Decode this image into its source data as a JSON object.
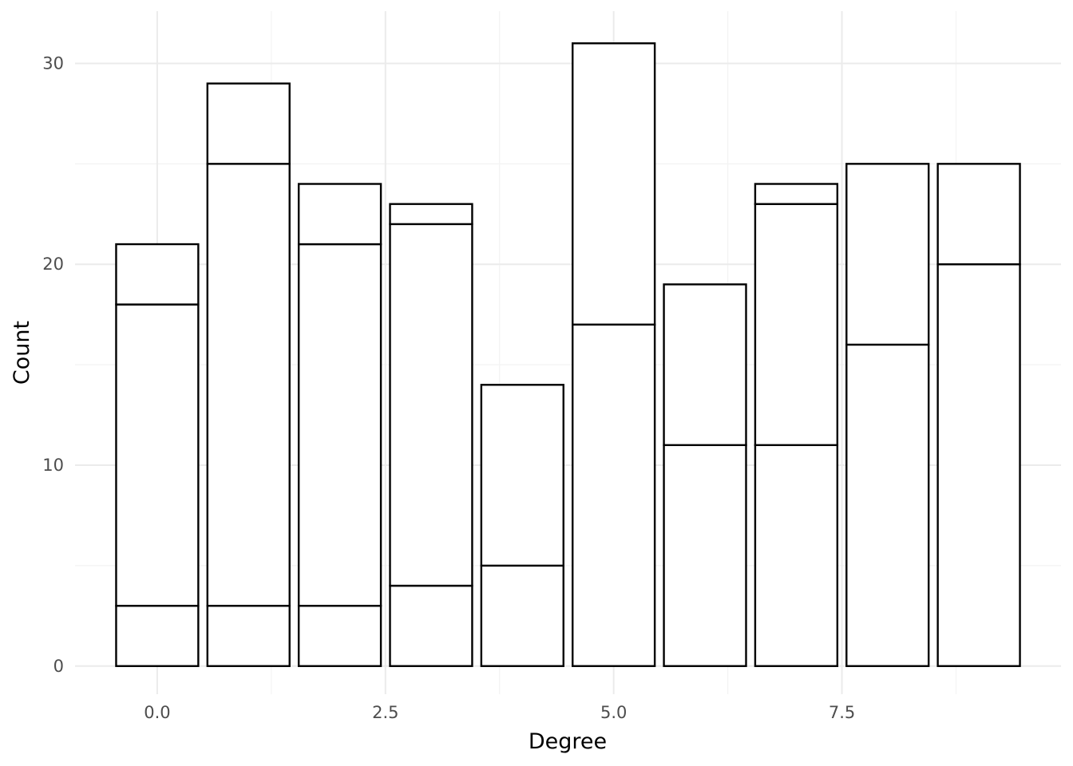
{
  "chart_data": {
    "type": "bar",
    "stacked": true,
    "fill": "#ffffff",
    "stroke": "#000000",
    "background": "#ffffff",
    "grid": true,
    "xlabel": "Degree",
    "ylabel": "Count",
    "xlim": [
      -0.9,
      9.9
    ],
    "ylim": [
      -1.4,
      32.6
    ],
    "x_ticks": [
      0.0,
      2.5,
      5.0,
      7.5
    ],
    "x_tick_labels": [
      "0.0",
      "2.5",
      "5.0",
      "7.5"
    ],
    "y_ticks": [
      0,
      10,
      20,
      30
    ],
    "y_tick_labels": [
      "0",
      "10",
      "20",
      "30"
    ],
    "x": [
      0,
      1,
      2,
      3,
      4,
      5,
      6,
      7,
      8,
      9
    ],
    "segment_boundaries": [
      [
        3,
        18,
        21
      ],
      [
        3,
        25,
        29
      ],
      [
        3,
        21,
        24
      ],
      [
        4,
        22,
        23
      ],
      [
        5,
        14
      ],
      [
        17,
        31
      ],
      [
        11,
        19
      ],
      [
        11,
        23,
        24
      ],
      [
        16,
        25
      ],
      [
        20,
        25
      ]
    ],
    "totals": [
      21,
      29,
      24,
      23,
      14,
      31,
      19,
      24,
      25,
      25
    ]
  }
}
